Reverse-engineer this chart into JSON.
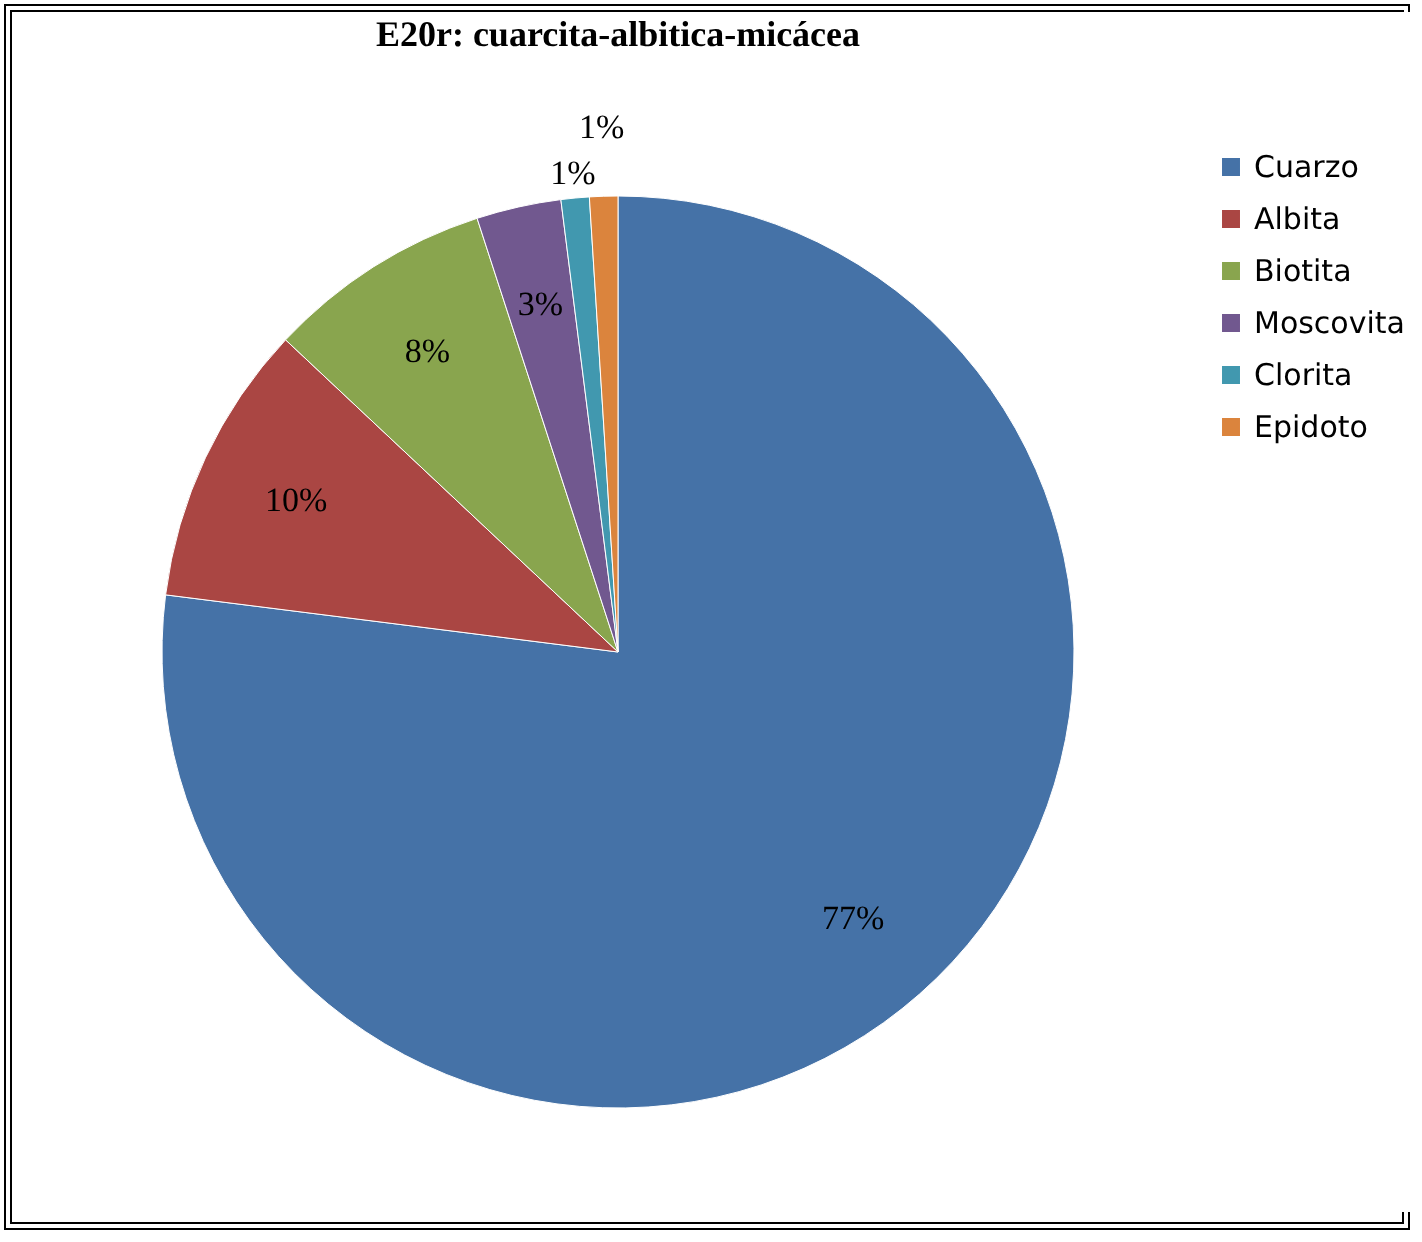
{
  "chart_data": {
    "type": "pie",
    "title": "E20r: cuarcita-albitica-micácea",
    "categories": [
      "Cuarzo",
      "Albita",
      "Biotita",
      "Moscovita",
      "Clorita",
      "Epidoto"
    ],
    "values": [
      77,
      10,
      8,
      3,
      1,
      1
    ],
    "colors": [
      "#4572a7",
      "#aa4643",
      "#89a54e",
      "#71588f",
      "#4198af",
      "#db843d"
    ],
    "value_labels": [
      "77%",
      "10%",
      "8%",
      "3%",
      "1%",
      "1%"
    ],
    "legend": "right"
  }
}
